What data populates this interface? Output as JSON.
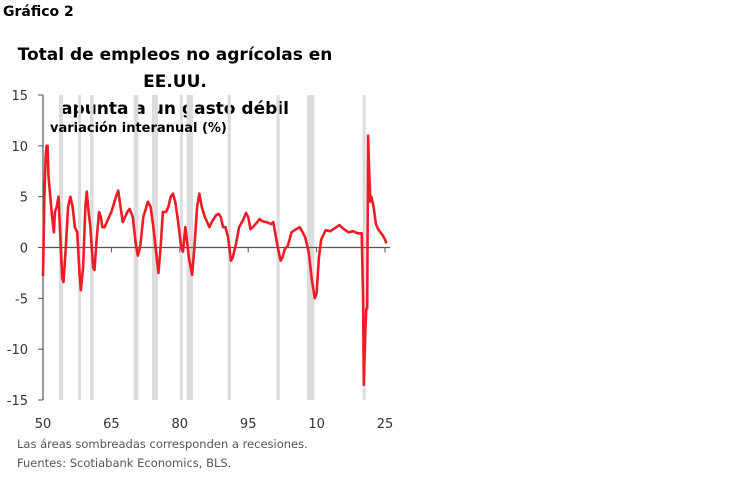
{
  "figure_label": "Gráfico 2",
  "chart_data": {
    "type": "line",
    "title": "Total de empleos no agrícolas en EE.UU. apunta a un gasto débil",
    "title_lines": [
      "Total de empleos no agrícolas en EE.UU.",
      "apunta a un gasto débil"
    ],
    "ylabel": "variación interanual (%)",
    "xlabel": "",
    "xlim": [
      1950,
      2025.5
    ],
    "ylim": [
      -15,
      15
    ],
    "yticks": [
      15,
      10,
      5,
      0,
      -5,
      -10,
      -15
    ],
    "xticks": [
      {
        "year": 1950,
        "label": "50"
      },
      {
        "year": 1965,
        "label": "65"
      },
      {
        "year": 1980,
        "label": "80"
      },
      {
        "year": 1995,
        "label": "95"
      },
      {
        "year": 2010,
        "label": "10"
      },
      {
        "year": 2025,
        "label": "25"
      }
    ],
    "grid": false,
    "line_color": "#ee1c25",
    "recession_color": "#dcdcdc",
    "recessions": [
      [
        1953.5,
        1954.4
      ],
      [
        1957.7,
        1958.3
      ],
      [
        1960.3,
        1961.1
      ],
      [
        1969.9,
        1970.9
      ],
      [
        1973.9,
        1975.2
      ],
      [
        1980.0,
        1980.5
      ],
      [
        1981.5,
        1982.9
      ],
      [
        1990.5,
        1991.2
      ],
      [
        2001.2,
        2001.9
      ],
      [
        2007.9,
        2009.5
      ],
      [
        2020.1,
        2020.4
      ]
    ],
    "series": [
      {
        "points": [
          [
            1950.0,
            -2.8
          ],
          [
            1950.3,
            5
          ],
          [
            1950.6,
            9
          ],
          [
            1950.8,
            10
          ],
          [
            1951.0,
            10
          ],
          [
            1951.2,
            7
          ],
          [
            1951.6,
            5
          ],
          [
            1952.0,
            3
          ],
          [
            1952.4,
            1.5
          ],
          [
            1952.6,
            3.5
          ],
          [
            1953.0,
            4
          ],
          [
            1953.4,
            5
          ],
          [
            1953.7,
            2
          ],
          [
            1954.2,
            -3
          ],
          [
            1954.5,
            -3.4
          ],
          [
            1955.0,
            0
          ],
          [
            1955.5,
            4
          ],
          [
            1956.0,
            5
          ],
          [
            1956.5,
            4
          ],
          [
            1957.0,
            2
          ],
          [
            1957.5,
            1.5
          ],
          [
            1958.0,
            -2.5
          ],
          [
            1958.3,
            -4.2
          ],
          [
            1958.8,
            -2
          ],
          [
            1959.3,
            4
          ],
          [
            1959.6,
            5.5
          ],
          [
            1960.0,
            3.5
          ],
          [
            1960.4,
            2
          ],
          [
            1961.0,
            -2
          ],
          [
            1961.3,
            -2.2
          ],
          [
            1961.8,
            1
          ],
          [
            1962.3,
            3.5
          ],
          [
            1962.7,
            3
          ],
          [
            1963.0,
            2
          ],
          [
            1963.5,
            2
          ],
          [
            1964.0,
            2.5
          ],
          [
            1965.0,
            3.5
          ],
          [
            1966.0,
            5
          ],
          [
            1966.5,
            5.6
          ],
          [
            1967.0,
            4
          ],
          [
            1967.5,
            2.5
          ],
          [
            1968.0,
            3
          ],
          [
            1968.5,
            3.5
          ],
          [
            1969.0,
            3.8
          ],
          [
            1969.7,
            3
          ],
          [
            1970.3,
            0.5
          ],
          [
            1970.8,
            -0.8
          ],
          [
            1971.3,
            0
          ],
          [
            1972.0,
            3
          ],
          [
            1973.0,
            4.5
          ],
          [
            1973.6,
            4
          ],
          [
            1974.2,
            2
          ],
          [
            1974.7,
            0
          ],
          [
            1975.3,
            -2.5
          ],
          [
            1975.8,
            0
          ],
          [
            1976.3,
            3.5
          ],
          [
            1977.0,
            3.5
          ],
          [
            1977.5,
            4
          ],
          [
            1978.0,
            5
          ],
          [
            1978.5,
            5.3
          ],
          [
            1979.0,
            4.5
          ],
          [
            1979.5,
            3
          ],
          [
            1980.3,
            0
          ],
          [
            1980.7,
            -0.4
          ],
          [
            1981.2,
            2
          ],
          [
            1981.5,
            1
          ],
          [
            1982.0,
            -1
          ],
          [
            1982.7,
            -2.7
          ],
          [
            1983.2,
            0
          ],
          [
            1983.8,
            4
          ],
          [
            1984.3,
            5.3
          ],
          [
            1984.8,
            4
          ],
          [
            1985.5,
            3
          ],
          [
            1986.5,
            2
          ],
          [
            1987.0,
            2.5
          ],
          [
            1988.0,
            3.2
          ],
          [
            1988.5,
            3.3
          ],
          [
            1989.0,
            3
          ],
          [
            1989.5,
            2
          ],
          [
            1990.0,
            2
          ],
          [
            1990.6,
            1
          ],
          [
            1991.2,
            -1.3
          ],
          [
            1991.6,
            -1
          ],
          [
            1992.3,
            0.3
          ],
          [
            1993.0,
            2
          ],
          [
            1994.0,
            2.8
          ],
          [
            1994.5,
            3.4
          ],
          [
            1995.0,
            3
          ],
          [
            1995.5,
            1.8
          ],
          [
            1996.0,
            2
          ],
          [
            1997.0,
            2.5
          ],
          [
            1997.5,
            2.8
          ],
          [
            1998.0,
            2.6
          ],
          [
            1999.0,
            2.5
          ],
          [
            2000.0,
            2.3
          ],
          [
            2000.5,
            2.5
          ],
          [
            2001.0,
            1.2
          ],
          [
            2001.5,
            0
          ],
          [
            2002.1,
            -1.3
          ],
          [
            2002.5,
            -1
          ],
          [
            2003.0,
            -0.2
          ],
          [
            2003.7,
            0.2
          ],
          [
            2004.5,
            1.5
          ],
          [
            2005.5,
            1.8
          ],
          [
            2006.3,
            2
          ],
          [
            2006.8,
            1.6
          ],
          [
            2007.5,
            1
          ],
          [
            2008.3,
            -0.5
          ],
          [
            2008.9,
            -3
          ],
          [
            2009.6,
            -5
          ],
          [
            2010.0,
            -4.5
          ],
          [
            2010.5,
            -1
          ],
          [
            2011.0,
            0.8
          ],
          [
            2012.0,
            1.7
          ],
          [
            2013.0,
            1.6
          ],
          [
            2014.0,
            1.9
          ],
          [
            2015.0,
            2.2
          ],
          [
            2016.0,
            1.8
          ],
          [
            2017.0,
            1.5
          ],
          [
            2018.0,
            1.6
          ],
          [
            2019.0,
            1.4
          ],
          [
            2019.9,
            1.4
          ],
          [
            2020.2,
            -5
          ],
          [
            2020.35,
            -13.5
          ],
          [
            2020.7,
            -8
          ],
          [
            2020.9,
            -6
          ],
          [
            2021.1,
            -6
          ],
          [
            2021.3,
            11
          ],
          [
            2021.5,
            8
          ],
          [
            2021.8,
            4.5
          ],
          [
            2022.0,
            5
          ],
          [
            2022.5,
            4
          ],
          [
            2023.0,
            2.3
          ],
          [
            2023.5,
            1.8
          ],
          [
            2024.0,
            1.5
          ],
          [
            2024.5,
            1.2
          ],
          [
            2025.0,
            0.8
          ],
          [
            2025.3,
            0.4
          ]
        ]
      }
    ]
  },
  "notes": [
    "Las áreas sombreadas corresponden a recesiones.",
    "Fuentes:  Scotiabank Economics, BLS."
  ]
}
